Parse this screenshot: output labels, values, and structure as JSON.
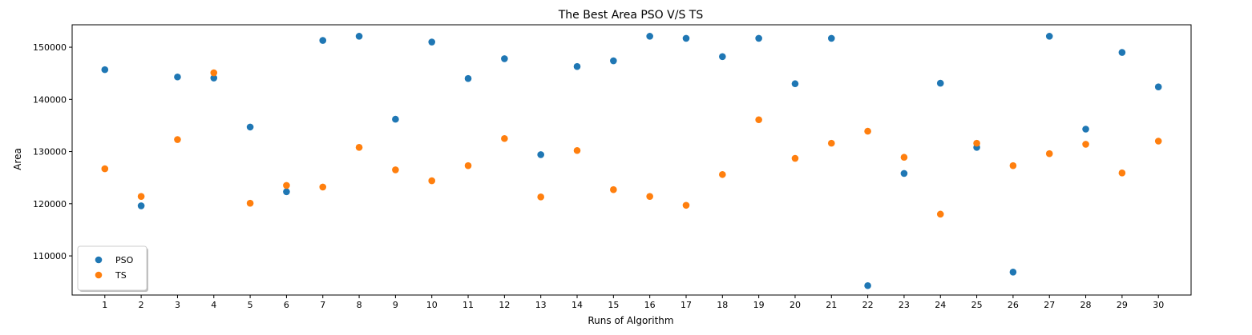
{
  "chart_data": {
    "type": "scatter",
    "title": "The Best Area PSO V/S TS",
    "xlabel": "Runs of Algorithm",
    "ylabel": "Area",
    "x": [
      1,
      2,
      3,
      4,
      5,
      6,
      7,
      8,
      9,
      10,
      11,
      12,
      13,
      14,
      15,
      16,
      17,
      18,
      19,
      20,
      21,
      22,
      23,
      24,
      25,
      26,
      27,
      28,
      29,
      30
    ],
    "xlim": [
      0.1,
      30.9
    ],
    "ylim": [
      102500,
      154300
    ],
    "yticks": [
      110000,
      120000,
      130000,
      140000,
      150000
    ],
    "series": [
      {
        "name": "PSO",
        "color": "#1f77b4",
        "values": [
          145700,
          119600,
          144300,
          144100,
          134700,
          122300,
          151300,
          152100,
          136200,
          151000,
          144000,
          147800,
          129400,
          146300,
          147400,
          152100,
          151700,
          148200,
          151700,
          143000,
          151700,
          104300,
          125800,
          143100,
          130800,
          106900,
          152100,
          134300,
          149000,
          142400
        ]
      },
      {
        "name": "TS",
        "color": "#ff7f0e",
        "values": [
          126700,
          121400,
          132300,
          145100,
          120100,
          123500,
          123200,
          130800,
          126500,
          124400,
          127300,
          132500,
          121300,
          130200,
          122700,
          121400,
          119700,
          125600,
          136100,
          128700,
          131600,
          133900,
          128900,
          118000,
          131600,
          127300,
          129600,
          131400,
          125900,
          132000
        ]
      }
    ],
    "legend_position": "lower-left",
    "grid": false
  }
}
